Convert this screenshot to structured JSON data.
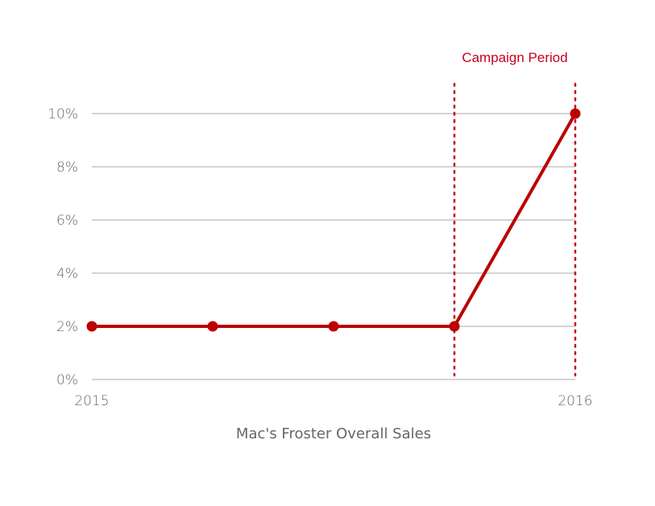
{
  "chart_data": {
    "type": "line",
    "title": "Mac's Froster Overall Sales",
    "xlabel": "",
    "ylabel": "",
    "x": [
      0,
      1,
      2,
      3,
      4
    ],
    "x_tick_labels": [
      {
        "x": 0,
        "label": "2015"
      },
      {
        "x": 4,
        "label": "2016"
      }
    ],
    "series": [
      {
        "name": "Sales",
        "values": [
          2,
          2,
          2,
          2,
          10
        ],
        "color": "#bb0000"
      }
    ],
    "ylim": [
      0,
      10
    ],
    "y_ticks": [
      0,
      2,
      4,
      6,
      8,
      10
    ],
    "y_tick_labels": [
      "0%",
      "2%",
      "4%",
      "6%",
      "8%",
      "10%"
    ],
    "grid": true,
    "annotation": {
      "label": "Campaign Period",
      "x_start": 3,
      "x_end": 4,
      "color": "#c8001e"
    }
  }
}
